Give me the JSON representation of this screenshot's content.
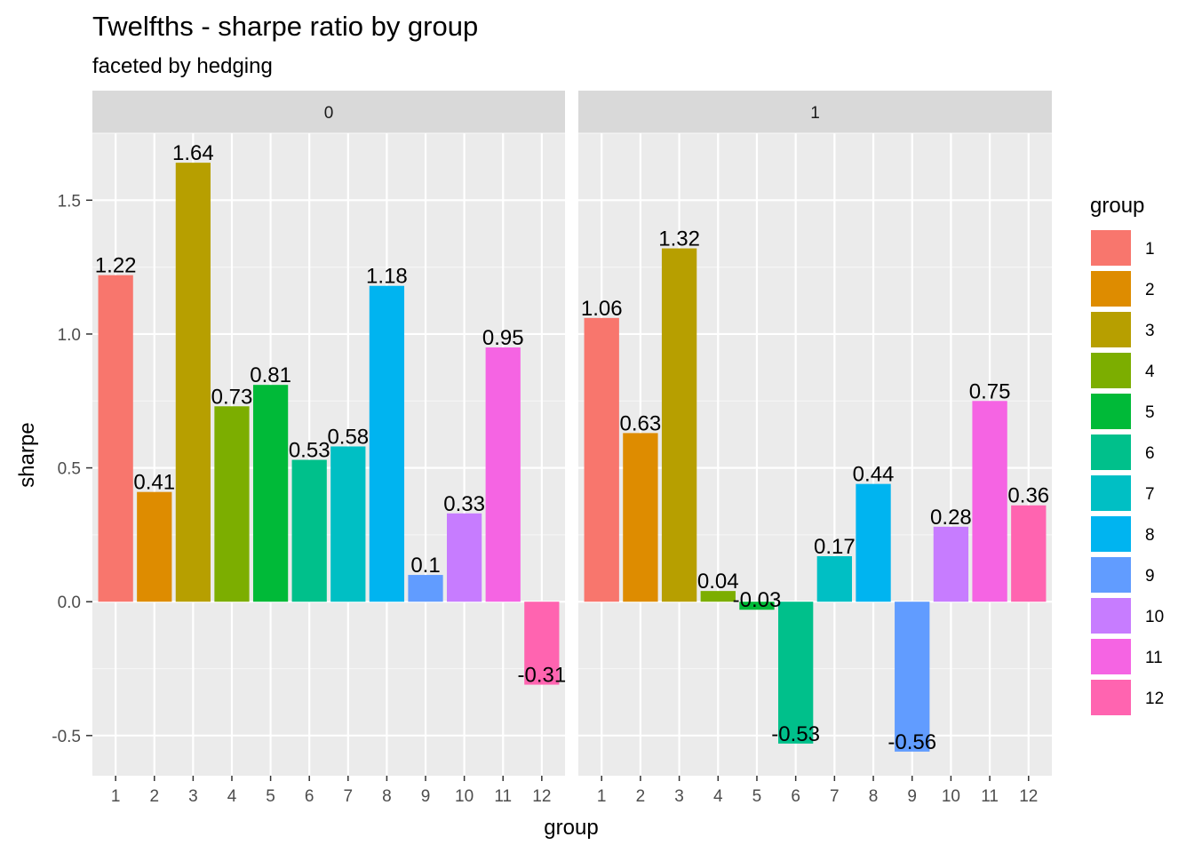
{
  "chart_data": {
    "type": "bar",
    "title": "Twelfths - sharpe ratio by group",
    "subtitle": "faceted by hedging",
    "xlabel": "group",
    "ylabel": "sharpe",
    "ylim": [
      -0.65,
      1.75
    ],
    "y_ticks": [
      -0.5,
      0.0,
      0.5,
      1.0,
      1.5
    ],
    "y_tick_labels": [
      "-0.5",
      "0.0",
      "0.5",
      "1.0",
      "1.5"
    ],
    "categories": [
      "1",
      "2",
      "3",
      "4",
      "5",
      "6",
      "7",
      "8",
      "9",
      "10",
      "11",
      "12"
    ],
    "facets": [
      {
        "label": "0",
        "values": [
          1.22,
          0.41,
          1.64,
          0.73,
          0.81,
          0.53,
          0.58,
          1.18,
          0.1,
          0.33,
          0.95,
          -0.31
        ],
        "labels": [
          "1.22",
          "0.41",
          "1.64",
          "0.73",
          "0.81",
          "0.53",
          "0.58",
          "1.18",
          "0.1",
          "0.33",
          "0.95",
          "-0.31"
        ]
      },
      {
        "label": "1",
        "values": [
          1.06,
          0.63,
          1.32,
          0.04,
          -0.03,
          -0.53,
          0.17,
          0.44,
          -0.56,
          0.28,
          0.75,
          0.36
        ],
        "labels": [
          "1.06",
          "0.63",
          "1.32",
          "0.04",
          "-0.03",
          "-0.53",
          "0.17",
          "0.44",
          "-0.56",
          "0.28",
          "0.75",
          "0.36"
        ]
      }
    ],
    "grid": true,
    "legend": {
      "title": "group",
      "position": "right",
      "entries": [
        "1",
        "2",
        "3",
        "4",
        "5",
        "6",
        "7",
        "8",
        "9",
        "10",
        "11",
        "12"
      ]
    },
    "colors": [
      "#F8766D",
      "#DE8C00",
      "#B79F00",
      "#7CAE00",
      "#00BA38",
      "#00C08B",
      "#00BFC4",
      "#00B4F0",
      "#619CFF",
      "#C77CFF",
      "#F564E3",
      "#FF64B0"
    ]
  }
}
